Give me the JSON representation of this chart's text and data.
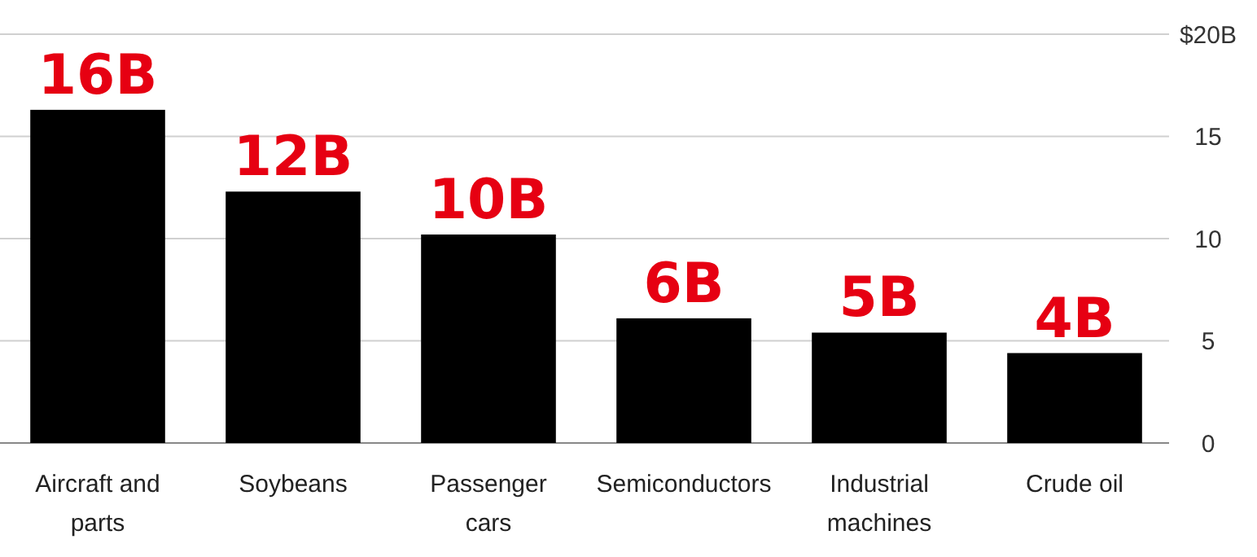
{
  "chart_data": {
    "type": "bar",
    "categories": [
      "Aircraft and parts",
      "Soybeans",
      "Passenger cars",
      "Semiconductors",
      "Industrial machines",
      "Crude oil"
    ],
    "values": [
      16.3,
      12.3,
      10.2,
      6.1,
      5.4,
      4.4
    ],
    "value_labels": [
      "16B",
      "12B",
      "10B",
      "6B",
      "5B",
      "4B"
    ],
    "color": "#000000",
    "ylim": [
      0,
      20
    ],
    "yticks": [
      0,
      5,
      10,
      15,
      {
        "value": 20,
        "label": "$20B"
      }
    ],
    "grid": "y"
  }
}
